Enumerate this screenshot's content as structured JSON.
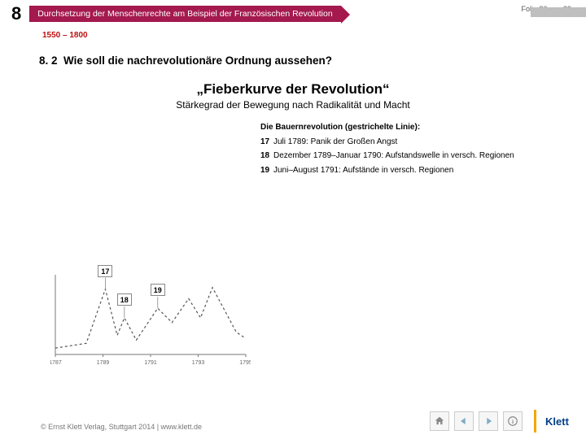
{
  "header": {
    "chapter": "8",
    "crumb": "Durchsetzung der Menschenrechte am Beispiel der Französischen Revolution",
    "slide_counter": "Folie 26 von 29",
    "date_range": "1550 – 1800",
    "grey_tail_width": 68
  },
  "section": {
    "num": "8. 2",
    "title": "Wie soll die nachrevolutionäre Ordnung aussehen?"
  },
  "main_title": "„Fieberkurve der Revolution“",
  "subtitle": "Stärkegrad der Bewegung nach Radikalität und Macht",
  "legend": {
    "title": "Die Bauernrevolution (gestrichelte Linie):",
    "rows": [
      {
        "n": "17",
        "t": "Juli 1789: Panik der Großen Angst"
      },
      {
        "n": "18",
        "t": "Dezember 1789–Januar 1790: Aufstandswelle in versch. Regionen"
      },
      {
        "n": "19",
        "t": "Juni–August 1791: Aufstände in versch. Regionen"
      }
    ]
  },
  "chart": {
    "type": "line",
    "xlim": [
      1787,
      1795
    ],
    "ylim": [
      0,
      100
    ],
    "xticks": [
      1787,
      1789,
      1791,
      1793,
      1795
    ],
    "xtick_labels": [
      "1787",
      "1789",
      "1791",
      "1793",
      "1795"
    ],
    "axis_color": "#777",
    "tick_fontsize": 7,
    "line_dashed": {
      "color": "#555",
      "dasharray": "3,3",
      "width": 1.2,
      "points": [
        [
          1787,
          8
        ],
        [
          1788.3,
          14
        ],
        [
          1789.1,
          82
        ],
        [
          1789.6,
          24
        ],
        [
          1789.9,
          46
        ],
        [
          1790.4,
          18
        ],
        [
          1791.3,
          58
        ],
        [
          1791.9,
          40
        ],
        [
          1792.6,
          70
        ],
        [
          1793.1,
          46
        ],
        [
          1793.6,
          84
        ],
        [
          1794.1,
          56
        ],
        [
          1794.6,
          28
        ],
        [
          1795,
          20
        ]
      ]
    },
    "markers": [
      {
        "label": "17",
        "x": 1789.1,
        "y": 82
      },
      {
        "label": "18",
        "x": 1789.9,
        "y": 46
      },
      {
        "label": "19",
        "x": 1791.3,
        "y": 58
      }
    ]
  },
  "footer": "© Ernst Klett Verlag, Stuttgart 2014 | www.klett.de",
  "logo_text": "Klett",
  "colors": {
    "brand": "#a4194e",
    "klett_blue": "#003f87",
    "klett_orange": "#f7a600"
  }
}
